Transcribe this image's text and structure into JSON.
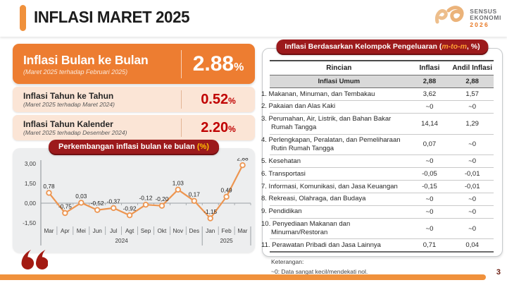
{
  "header": {
    "title": "INFLASI MARET 2025",
    "logo": {
      "line1": "SENSUS",
      "line2": "EKONOMI",
      "year": "2026"
    }
  },
  "cards": {
    "mtm": {
      "title": "Inflasi Bulan ke Bulan",
      "subtitle": "(Maret 2025 terhadap Februari 2025)",
      "value": "2.88",
      "unit": "%"
    },
    "yoy": {
      "title": "Inflasi Tahun ke Tahun",
      "subtitle": "(Maret 2025 terhadap Maret 2024)",
      "value": "0.52",
      "unit": "%"
    },
    "ytd": {
      "title": "Inflasi Tahun Kalender",
      "subtitle": "(Maret 2025 terhadap Desember 2024)",
      "value": "2.20",
      "unit": "%"
    }
  },
  "chart_data": {
    "type": "line",
    "title": "Perkembangan inflasi bulan ke bulan",
    "title_unit": "(%)",
    "x": [
      "Mar",
      "Apr",
      "Mei",
      "Jun",
      "Jul",
      "Agt",
      "Sep",
      "Okt",
      "Nov",
      "Des",
      "Jan",
      "Feb",
      "Mar"
    ],
    "values": [
      0.78,
      -0.75,
      0.03,
      -0.52,
      -0.37,
      -0.92,
      -0.12,
      -0.2,
      1.03,
      0.17,
      -1.15,
      0.49,
      2.88
    ],
    "labels": [
      "0,78",
      "-0,75",
      "0,03",
      "-0,52",
      "-0,37",
      "-0,92",
      "-0,12",
      "-0,20",
      "1,03",
      "0,17",
      "-1,15",
      "0,49",
      "2,88"
    ],
    "y_ticks": [
      "3,00",
      "1,50",
      "0,00",
      "-1,50"
    ],
    "y_tick_values": [
      3.0,
      1.5,
      0.0,
      -1.5
    ],
    "ylim": [
      -1.5,
      3.0
    ],
    "year_groups": [
      {
        "label": "2024",
        "from": 0,
        "to": 9
      },
      {
        "label": "2025",
        "from": 10,
        "to": 12
      }
    ],
    "line_color": "#ED9550",
    "grid": false,
    "legend": "none"
  },
  "table": {
    "title_prefix": "Inflasi Berdasarkan Kelompok Pengeluaran (",
    "title_accent": "m-to-m",
    "title_suffix": ", %)",
    "columns": [
      "Rincian",
      "Inflasi",
      "Andil Inflasi"
    ],
    "summary_row": {
      "name": "Inflasi Umum",
      "inflasi": "2,88",
      "andil": "2,88"
    },
    "rows": [
      {
        "no": "1.",
        "name": "Makanan, Minuman, dan Tembakau",
        "inflasi": "3,62",
        "andil": "1,57"
      },
      {
        "no": "2.",
        "name": "Pakaian dan Alas Kaki",
        "inflasi": "~0",
        "andil": "~0"
      },
      {
        "no": "3.",
        "name": "Perumahan, Air, Listrik, dan Bahan Bakar Rumah Tangga",
        "inflasi": "14,14",
        "andil": "1,29"
      },
      {
        "no": "4.",
        "name": "Perlengkapan, Peralatan, dan Pemeliharaan Rutin Rumah Tangga",
        "inflasi": "0,07",
        "andil": "~0"
      },
      {
        "no": "5.",
        "name": "Kesehatan",
        "inflasi": "~0",
        "andil": "~0"
      },
      {
        "no": "6.",
        "name": "Transportasi",
        "inflasi": "-0,05",
        "andil": "-0,01"
      },
      {
        "no": "7.",
        "name": "Informasi, Komunikasi, dan Jasa Keuangan",
        "inflasi": "-0,15",
        "andil": "-0,01"
      },
      {
        "no": "8.",
        "name": "Rekreasi, Olahraga, dan Budaya",
        "inflasi": "~0",
        "andil": "~0"
      },
      {
        "no": "9.",
        "name": "Pendidikan",
        "inflasi": "~0",
        "andil": "~0"
      },
      {
        "no": "10.",
        "name": "Penyediaan Makanan dan Minuman/Restoran",
        "inflasi": "~0",
        "andil": "~0"
      },
      {
        "no": "11.",
        "name": "Perawatan Pribadi dan Jasa Lainnya",
        "inflasi": "0,71",
        "andil": "0,04"
      }
    ],
    "notes": [
      "Keterangan:",
      "~0: Data sangat kecil/mendekati nol."
    ]
  },
  "footer": {
    "page_number": "3"
  },
  "colors": {
    "accent_orange": "#ED7D31",
    "bar_orange": "#F0913C",
    "peach": "#FBE5D6",
    "maroon_pill": "#9C1A1C",
    "value_red": "#C00000",
    "chart_panel_gray": "#EDEEEF",
    "summary_row_gray": "#D9D9D9",
    "logo_orange": "#E87722"
  }
}
